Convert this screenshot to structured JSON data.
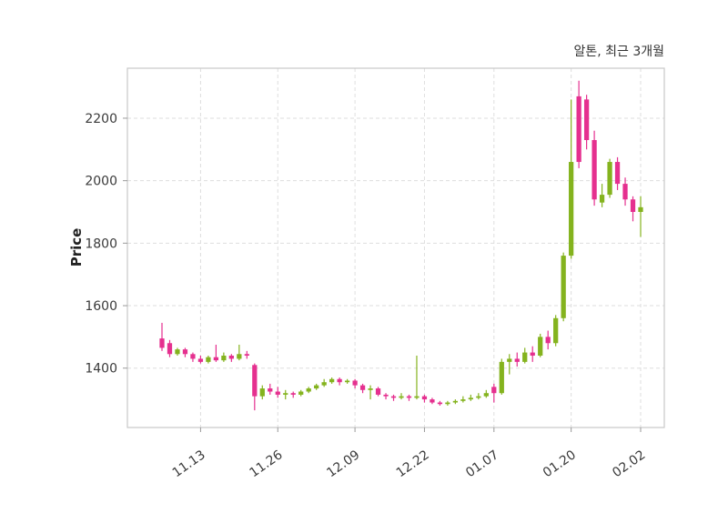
{
  "chart_data": {
    "type": "candlestick",
    "title": "알톤, 최근 3개월",
    "ylabel": "Price",
    "ylim": [
      1210,
      2360
    ],
    "yticks": [
      1400,
      1600,
      1800,
      2000,
      2200
    ],
    "xticks": [
      {
        "label": "11.13",
        "index": 5
      },
      {
        "label": "11.26",
        "index": 15
      },
      {
        "label": "12.09",
        "index": 25
      },
      {
        "label": "12.22",
        "index": 34
      },
      {
        "label": "01.07",
        "index": 43
      },
      {
        "label": "01.20",
        "index": 53
      },
      {
        "label": "02.02",
        "index": 62
      }
    ],
    "rising_color": "#84b31e",
    "falling_color": "#e5308f",
    "grid": true,
    "candle_columns": [
      "date",
      "open",
      "high",
      "low",
      "close"
    ],
    "candles": [
      [
        "11.06",
        1495,
        1545,
        1455,
        1465
      ],
      [
        "11.07",
        1480,
        1490,
        1435,
        1445
      ],
      [
        "11.08",
        1445,
        1465,
        1440,
        1460
      ],
      [
        "11.09",
        1460,
        1465,
        1435,
        1445
      ],
      [
        "11.10",
        1445,
        1450,
        1420,
        1430
      ],
      [
        "11.13",
        1430,
        1440,
        1415,
        1420
      ],
      [
        "11.14",
        1420,
        1440,
        1415,
        1435
      ],
      [
        "11.15",
        1435,
        1475,
        1420,
        1425
      ],
      [
        "11.16",
        1425,
        1450,
        1420,
        1440
      ],
      [
        "11.17",
        1440,
        1445,
        1420,
        1430
      ],
      [
        "11.20",
        1430,
        1475,
        1425,
        1445
      ],
      [
        "11.21",
        1445,
        1455,
        1430,
        1440
      ],
      [
        "11.22",
        1410,
        1415,
        1265,
        1310
      ],
      [
        "11.23",
        1310,
        1345,
        1300,
        1335
      ],
      [
        "11.24",
        1335,
        1350,
        1315,
        1325
      ],
      [
        "11.27",
        1325,
        1340,
        1305,
        1315
      ],
      [
        "11.28",
        1315,
        1330,
        1300,
        1320
      ],
      [
        "11.29",
        1320,
        1325,
        1305,
        1315
      ],
      [
        "11.30",
        1315,
        1330,
        1310,
        1325
      ],
      [
        "12.01",
        1325,
        1340,
        1320,
        1335
      ],
      [
        "12.04",
        1335,
        1350,
        1330,
        1345
      ],
      [
        "12.05",
        1345,
        1365,
        1340,
        1355
      ],
      [
        "12.06",
        1355,
        1370,
        1350,
        1365
      ],
      [
        "12.07",
        1365,
        1370,
        1345,
        1355
      ],
      [
        "12.08",
        1355,
        1365,
        1350,
        1360
      ],
      [
        "12.11",
        1360,
        1365,
        1335,
        1345
      ],
      [
        "12.12",
        1345,
        1350,
        1320,
        1330
      ],
      [
        "12.13",
        1330,
        1345,
        1300,
        1335
      ],
      [
        "12.14",
        1335,
        1340,
        1310,
        1315
      ],
      [
        "12.15",
        1315,
        1320,
        1300,
        1310
      ],
      [
        "12.18",
        1310,
        1315,
        1295,
        1305
      ],
      [
        "12.19",
        1305,
        1320,
        1300,
        1310
      ],
      [
        "12.20",
        1310,
        1315,
        1295,
        1305
      ],
      [
        "12.21",
        1305,
        1440,
        1300,
        1310
      ],
      [
        "12.22",
        1310,
        1315,
        1290,
        1300
      ],
      [
        "12.26",
        1300,
        1305,
        1285,
        1290
      ],
      [
        "12.27",
        1290,
        1295,
        1280,
        1285
      ],
      [
        "12.28",
        1285,
        1295,
        1280,
        1290
      ],
      [
        "12.29",
        1290,
        1300,
        1285,
        1295
      ],
      [
        "01.02",
        1295,
        1310,
        1290,
        1300
      ],
      [
        "01.03",
        1300,
        1315,
        1295,
        1305
      ],
      [
        "01.04",
        1305,
        1320,
        1300,
        1310
      ],
      [
        "01.05",
        1310,
        1330,
        1305,
        1320
      ],
      [
        "01.08",
        1340,
        1350,
        1290,
        1320
      ],
      [
        "01.09",
        1320,
        1430,
        1315,
        1420
      ],
      [
        "01.10",
        1420,
        1445,
        1380,
        1430
      ],
      [
        "01.11",
        1430,
        1450,
        1405,
        1420
      ],
      [
        "01.12",
        1420,
        1465,
        1415,
        1450
      ],
      [
        "01.15",
        1450,
        1470,
        1420,
        1440
      ],
      [
        "01.16",
        1440,
        1510,
        1435,
        1500
      ],
      [
        "01.17",
        1500,
        1520,
        1460,
        1480
      ],
      [
        "01.18",
        1480,
        1570,
        1470,
        1560
      ],
      [
        "01.19",
        1560,
        1770,
        1550,
        1760
      ],
      [
        "01.22",
        1760,
        2260,
        1750,
        2060
      ],
      [
        "01.23",
        2270,
        2320,
        2040,
        2060
      ],
      [
        "01.24",
        2260,
        2275,
        2100,
        2130
      ],
      [
        "01.25",
        2130,
        2160,
        1920,
        1940
      ],
      [
        "01.26",
        1930,
        1990,
        1915,
        1955
      ],
      [
        "01.29",
        1955,
        2070,
        1945,
        2060
      ],
      [
        "01.30",
        2060,
        2075,
        1970,
        1990
      ],
      [
        "01.31",
        1990,
        2010,
        1920,
        1940
      ],
      [
        "02.01",
        1940,
        1950,
        1870,
        1900
      ],
      [
        "02.02",
        1900,
        1950,
        1820,
        1915
      ]
    ]
  }
}
